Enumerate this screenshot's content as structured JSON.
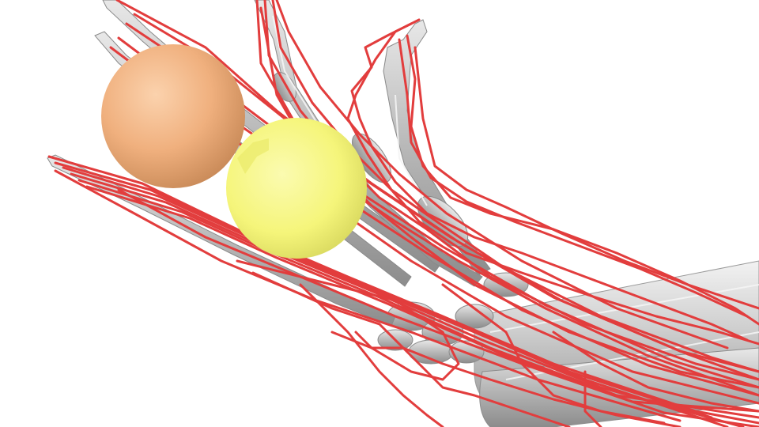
{
  "scene": {
    "description_label": "musculoskeletal-hand-model",
    "colors": {
      "background": "#ffffff",
      "bone": "#b9b9b9",
      "bone_highlight": "#efefef",
      "bone_shadow": "#8a8a8a",
      "tendon": "#e23d3d",
      "sphere_orange": "#f0b07e",
      "sphere_yellow": "#f5f57a"
    },
    "objects": {
      "spheres": [
        "orange-sphere",
        "yellow-sphere"
      ],
      "bones": [
        "forearm",
        "thumb",
        "index-finger",
        "middle-finger",
        "ring-finger",
        "little-finger",
        "carpals"
      ],
      "tendon_bundles": 4
    }
  }
}
